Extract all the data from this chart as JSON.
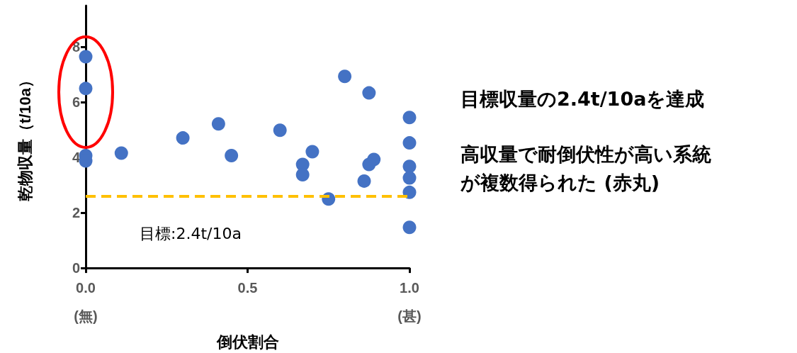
{
  "chart_data": {
    "type": "scatter",
    "xlabel": "倒伏割合",
    "ylabel": "乾物収量（t/10a）",
    "x": [
      0,
      0,
      0,
      0,
      0.11,
      0.3,
      0.41,
      0.45,
      0.6,
      0.7,
      0.67,
      0.67,
      0.75,
      0.8,
      0.875,
      0.89,
      0.875,
      0.86,
      1.0,
      1.0,
      1.0,
      1.0,
      1.0,
      1.0
    ],
    "values": [
      7.65,
      6.5,
      4.07,
      3.88,
      4.16,
      4.71,
      5.22,
      4.07,
      4.99,
      4.21,
      3.75,
      3.38,
      2.5,
      6.94,
      6.34,
      3.93,
      3.75,
      3.15,
      5.45,
      4.53,
      3.68,
      3.26,
      2.74,
      1.47
    ],
    "color": "#4472c4",
    "marker": "circle",
    "xlim": [
      0,
      1
    ],
    "xticks": [
      {
        "value": 0,
        "label": "0.0\n(無)"
      },
      0.5,
      {
        "value": 1,
        "label": "1.0\n(甚)"
      }
    ],
    "ylim": [
      0,
      9.5
    ],
    "yticks": [
      0,
      2,
      4,
      6,
      8
    ],
    "ref_lines": [
      {
        "axis": "y",
        "value": 2.6,
        "color": "#ffc000",
        "line_style": "dashed"
      }
    ],
    "annotations": [
      "目標:2.4t/10a",
      "目標収量の2.4t/10aを達成",
      "高収量で耐倒伏性が高い系統が複数得られた (赤丸)"
    ],
    "grid": false
  }
}
